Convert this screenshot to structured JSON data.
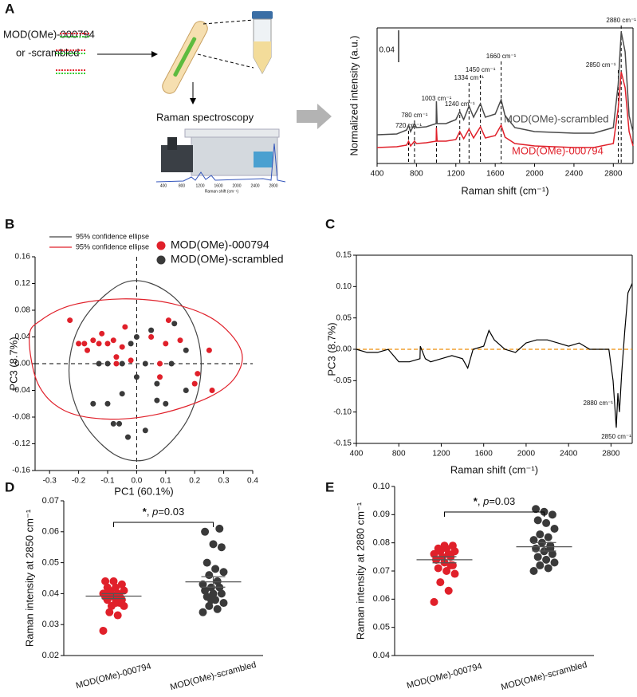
{
  "panel_labels": [
    "A",
    "B",
    "C",
    "D",
    "E"
  ],
  "schematic": {
    "sample_label": "MOD(OMe)-000794",
    "alt_label": "or -scrambled",
    "method": "Raman spectroscopy",
    "inset_ticks": [
      400,
      800,
      1200,
      1600,
      2000,
      2400,
      2800
    ],
    "inset_xlabel": "Raman shift (cm⁻¹)"
  },
  "chart_data": [
    {
      "type": "line",
      "xlabel": "Raman shift (cm⁻¹)",
      "ylabel": "Normalized intensity (a.u.)",
      "x": [
        400,
        600,
        700,
        720,
        740,
        780,
        800,
        900,
        1000,
        1003,
        1010,
        1100,
        1200,
        1240,
        1280,
        1334,
        1380,
        1450,
        1500,
        1600,
        1660,
        1700,
        1800,
        2000,
        2200,
        2400,
        2600,
        2800,
        2850,
        2880,
        2920,
        2960,
        3000
      ],
      "series": [
        {
          "name": "MOD(OMe)-scrambled",
          "color": "#4a4a4a",
          "values": [
            0.036,
            0.037,
            0.042,
            0.048,
            0.04,
            0.05,
            0.045,
            0.046,
            0.05,
            0.078,
            0.05,
            0.05,
            0.055,
            0.065,
            0.055,
            0.072,
            0.058,
            0.075,
            0.058,
            0.062,
            0.08,
            0.06,
            0.045,
            0.04,
            0.039,
            0.038,
            0.038,
            0.045,
            0.1,
            0.165,
            0.14,
            0.06,
            0.04
          ]
        },
        {
          "name": "MOD(OMe)-000794",
          "color": "#e0202a",
          "values": [
            0.02,
            0.021,
            0.023,
            0.028,
            0.022,
            0.028,
            0.025,
            0.026,
            0.028,
            0.045,
            0.028,
            0.028,
            0.03,
            0.04,
            0.031,
            0.043,
            0.032,
            0.046,
            0.032,
            0.035,
            0.048,
            0.033,
            0.025,
            0.022,
            0.021,
            0.02,
            0.02,
            0.025,
            0.07,
            0.115,
            0.095,
            0.04,
            0.022
          ]
        }
      ],
      "xlim": [
        400,
        3000
      ],
      "xticks": [
        400,
        800,
        1200,
        1600,
        2000,
        2400,
        2800
      ],
      "ylim": [
        0,
        0.17
      ],
      "scale_bar": 0.04,
      "annotations": [
        {
          "x": 720,
          "label": "720 cm⁻¹"
        },
        {
          "x": 780,
          "label": "780 cm⁻¹"
        },
        {
          "x": 1003,
          "label": "1003 cm⁻¹"
        },
        {
          "x": 1240,
          "label": "1240 cm⁻¹"
        },
        {
          "x": 1334,
          "label": "1334 cm⁻¹"
        },
        {
          "x": 1450,
          "label": "1450 cm⁻¹"
        },
        {
          "x": 1660,
          "label": "1660 cm⁻¹"
        },
        {
          "x": 2850,
          "label": "2850 cm⁻¹"
        },
        {
          "x": 2880,
          "label": "2880 cm⁻¹"
        }
      ]
    },
    {
      "type": "scatter",
      "xlabel": "PC1 (60.1%)",
      "ylabel": "PC3 (8.7%)",
      "zero_lines": true,
      "series": [
        {
          "name": "MOD(OMe)-000794",
          "color": "#e0202a",
          "x": [
            -0.23,
            -0.2,
            -0.18,
            -0.17,
            -0.15,
            -0.13,
            -0.12,
            -0.1,
            -0.08,
            -0.07,
            -0.05,
            -0.04,
            -0.02,
            0.05,
            0.08,
            0.08,
            0.1,
            0.11,
            0.15,
            0.2,
            0.25,
            0.26,
            0.21,
            -0.07
          ],
          "y": [
            0.065,
            0.03,
            0.03,
            0.02,
            0.035,
            0.03,
            0.045,
            0.03,
            0.035,
            0.0,
            0.025,
            0.055,
            0.005,
            0.04,
            0.0,
            -0.02,
            0.03,
            0.065,
            0.035,
            -0.03,
            0.02,
            -0.04,
            -0.015,
            0.01
          ]
        },
        {
          "name": "MOD(OMe)-scrambled",
          "color": "#3a3a3a",
          "x": [
            -0.13,
            -0.15,
            -0.1,
            -0.08,
            -0.06,
            -0.05,
            -0.05,
            -0.02,
            0.0,
            0.03,
            0.05,
            0.07,
            0.07,
            0.1,
            0.12,
            0.13,
            0.17,
            0.17,
            -0.03,
            0.03,
            -0.1,
            0.0
          ],
          "y": [
            0.0,
            -0.06,
            -0.06,
            -0.09,
            -0.09,
            -0.045,
            0.0,
            0.03,
            0.04,
            0.0,
            0.05,
            -0.03,
            -0.055,
            -0.06,
            0.0,
            0.06,
            0.02,
            -0.04,
            -0.11,
            -0.1,
            0.0,
            -0.02
          ]
        }
      ],
      "ellipses": [
        {
          "name": "95% confidence ellipse",
          "color": "#444444",
          "x": [
            -0.05,
            0.05,
            0.15,
            0.21,
            0.22,
            0.18,
            0.1,
            0.02,
            -0.08,
            -0.18,
            -0.23,
            -0.22,
            -0.16
          ],
          "y": [
            0.12,
            0.12,
            0.09,
            0.04,
            -0.02,
            -0.08,
            -0.125,
            -0.145,
            -0.135,
            -0.09,
            -0.03,
            0.03,
            0.08
          ]
        },
        {
          "name": "95% confidence ellipse",
          "color": "#e0202a",
          "x": [
            -0.37,
            -0.33,
            -0.22,
            -0.05,
            0.12,
            0.27,
            0.36,
            0.34,
            0.25,
            0.08,
            -0.1,
            -0.25,
            -0.34
          ],
          "y": [
            0.04,
            0.065,
            0.088,
            0.097,
            0.09,
            0.065,
            0.02,
            -0.02,
            -0.05,
            -0.075,
            -0.083,
            -0.07,
            -0.03
          ]
        }
      ],
      "xlim": [
        -0.35,
        0.4
      ],
      "xticks": [
        -0.3,
        -0.2,
        -0.1,
        {
          "value": 0,
          "label": "0.0"
        },
        0.1,
        0.2,
        0.3,
        0.4
      ],
      "ylim": [
        -0.16,
        0.16
      ],
      "yticks": [
        -0.16,
        -0.12,
        -0.08,
        -0.04,
        {
          "value": 0,
          "label": "0.00"
        },
        0.04,
        0.08,
        0.12,
        0.16
      ]
    },
    {
      "type": "line",
      "xlabel": "Raman shift (cm⁻¹)",
      "ylabel": "PC3 (8.7%)",
      "color": "#000000",
      "x": [
        400,
        500,
        600,
        700,
        800,
        900,
        1000,
        1003,
        1050,
        1100,
        1200,
        1300,
        1400,
        1450,
        1500,
        1600,
        1650,
        1700,
        1800,
        1900,
        2000,
        2100,
        2200,
        2300,
        2400,
        2500,
        2600,
        2700,
        2780,
        2820,
        2850,
        2865,
        2880,
        2900,
        2930,
        2960,
        3000
      ],
      "values": [
        0.0,
        -0.005,
        -0.005,
        0.0,
        -0.02,
        -0.02,
        -0.015,
        0.005,
        -0.015,
        -0.02,
        -0.015,
        -0.01,
        -0.015,
        -0.03,
        0.0,
        0.005,
        0.03,
        0.015,
        0.0,
        -0.005,
        0.01,
        0.015,
        0.015,
        0.01,
        0.005,
        0.01,
        0.0,
        0.0,
        0.0,
        -0.05,
        -0.125,
        -0.07,
        -0.1,
        -0.04,
        0.03,
        0.09,
        0.105
      ],
      "reference_line": {
        "value": 0,
        "color": "#f0a030"
      },
      "xlim": [
        400,
        3000
      ],
      "xticks": [
        400,
        800,
        1200,
        1600,
        2000,
        2400,
        2800
      ],
      "ylim": [
        -0.15,
        0.15
      ],
      "yticks": [
        -0.15,
        {
          "value": -0.1,
          "label": "-0.10"
        },
        -0.05,
        {
          "value": 0,
          "label": "0.00"
        },
        0.05,
        {
          "value": 0.1,
          "label": "0.10"
        },
        0.15
      ],
      "annotations": [
        {
          "x": 2880,
          "label": "2880 cm⁻¹"
        },
        {
          "x": 2850,
          "label": "2850 cm⁻¹"
        }
      ]
    },
    {
      "type": "strip",
      "ylabel": "Raman intensity at 2850 cm⁻¹",
      "categories": [
        "MOD(OMe)-000794",
        "MOD(OMe)-scrambled"
      ],
      "series": [
        {
          "color": "#e0202a",
          "values": [
            0.028,
            0.033,
            0.034,
            0.036,
            0.037,
            0.038,
            0.038,
            0.039,
            0.039,
            0.039,
            0.04,
            0.04,
            0.04,
            0.041,
            0.041,
            0.042,
            0.042,
            0.043,
            0.044,
            0.044,
            0.037,
            0.036
          ]
        },
        {
          "color": "#3a3a3a",
          "values": [
            0.034,
            0.035,
            0.036,
            0.037,
            0.038,
            0.039,
            0.04,
            0.04,
            0.041,
            0.042,
            0.042,
            0.043,
            0.044,
            0.046,
            0.047,
            0.048,
            0.05,
            0.055,
            0.056,
            0.06,
            0.061,
            0.038
          ]
        }
      ],
      "means": [
        0.0392,
        0.0438
      ],
      "errors": [
        0.0008,
        0.0017
      ],
      "annotation": [
        "*",
        ", ",
        "p",
        "=0.03"
      ],
      "ylim": [
        0.02,
        0.07
      ],
      "yticks": [
        0.02,
        0.03,
        0.04,
        0.05,
        0.06,
        0.07
      ]
    },
    {
      "type": "strip",
      "ylabel": "Raman intensity at 2880 cm⁻¹",
      "categories": [
        "MOD(OMe)-000794",
        "MOD(OMe)-scrambled"
      ],
      "series": [
        {
          "color": "#e0202a",
          "values": [
            0.059,
            0.063,
            0.066,
            0.069,
            0.07,
            0.071,
            0.072,
            0.073,
            0.074,
            0.075,
            0.075,
            0.076,
            0.076,
            0.077,
            0.077,
            0.078,
            0.078,
            0.079,
            0.079,
            0.074,
            0.072
          ]
        },
        {
          "color": "#3a3a3a",
          "values": [
            0.07,
            0.071,
            0.072,
            0.073,
            0.074,
            0.075,
            0.076,
            0.077,
            0.078,
            0.079,
            0.08,
            0.081,
            0.082,
            0.083,
            0.085,
            0.087,
            0.088,
            0.09,
            0.091,
            0.092,
            0.078
          ]
        }
      ],
      "means": [
        0.074,
        0.0786
      ],
      "errors": [
        0.0011,
        0.0015
      ],
      "annotation": [
        "*",
        ", ",
        "p",
        "=0.03"
      ],
      "ylim": [
        0.04,
        0.1
      ],
      "yticks": [
        0.04,
        0.05,
        0.06,
        0.07,
        0.08,
        0.09,
        {
          "value": 0.1,
          "label": "0.10"
        }
      ]
    }
  ]
}
